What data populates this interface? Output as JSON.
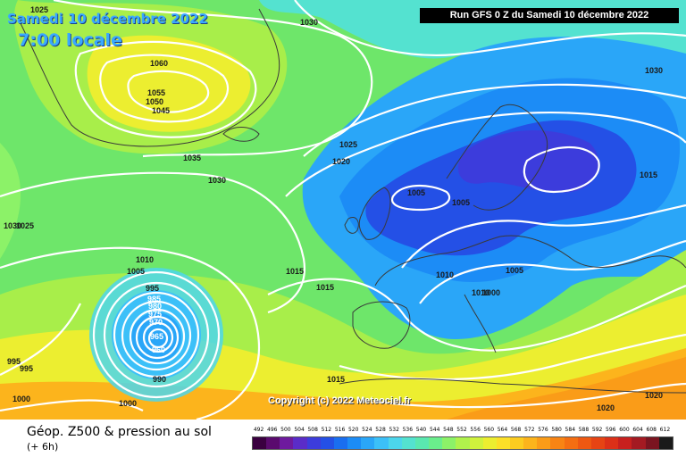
{
  "header": {
    "date_label": "Samedi 10 décembre 2022",
    "local_time": "7:00 locale",
    "run_info": "Run GFS 0 Z du Samedi 10 décembre 2022"
  },
  "footer": {
    "chart_name": "Géop. Z500 & pression au sol",
    "forecast_step": "(+ 6h)",
    "copyright": "Copyright (c) 2022 Meteociel.fr"
  },
  "legend": {
    "unit_scale": [
      "492",
      "496",
      "500",
      "504",
      "508",
      "512",
      "516",
      "520",
      "524",
      "528",
      "532",
      "536",
      "540",
      "544",
      "548",
      "552",
      "556",
      "560",
      "564",
      "568",
      "572",
      "576",
      "580",
      "584",
      "588",
      "592",
      "596",
      "600",
      "604",
      "608",
      "612"
    ],
    "colors": [
      "#3a0040",
      "#5a0a6e",
      "#6e1a9e",
      "#5a2cc8",
      "#3c3cdc",
      "#2450e6",
      "#1a6ef0",
      "#1c8cf6",
      "#2aa6f8",
      "#3cc0f8",
      "#4cd6ec",
      "#54e2d0",
      "#5ae8b0",
      "#6aee8c",
      "#8cf268",
      "#b0f24c",
      "#d0f23c",
      "#ecee30",
      "#fce028",
      "#fccc20",
      "#fcb41c",
      "#fa9c18",
      "#f88414",
      "#f46e12",
      "#ee5812",
      "#e64414",
      "#dc3018",
      "#c8201e",
      "#a41a22",
      "#7a1420",
      "#1a1a1a"
    ]
  },
  "pressure_labels": [
    "1025",
    "1030",
    "1060",
    "1055",
    "1050",
    "1045",
    "1035",
    "1030",
    "1025",
    "1020",
    "1005",
    "1005",
    "1030",
    "1025",
    "1010",
    "1005",
    "995",
    "985",
    "980",
    "975",
    "970",
    "965",
    "960",
    "995",
    "995",
    "1000",
    "1000",
    "990",
    "1015",
    "1015",
    "1015",
    "1010",
    "1000",
    "1005",
    "1010",
    "1015",
    "1030",
    "1020",
    "1020"
  ],
  "map_colors": {
    "green": "#6ee66a",
    "lime": "#a8ee4a",
    "yellow": "#ecee30",
    "cyan": "#54e2d0",
    "blue": "#1c8cf6",
    "deep_blue": "#2450e6",
    "orange": "#fa9c18"
  }
}
